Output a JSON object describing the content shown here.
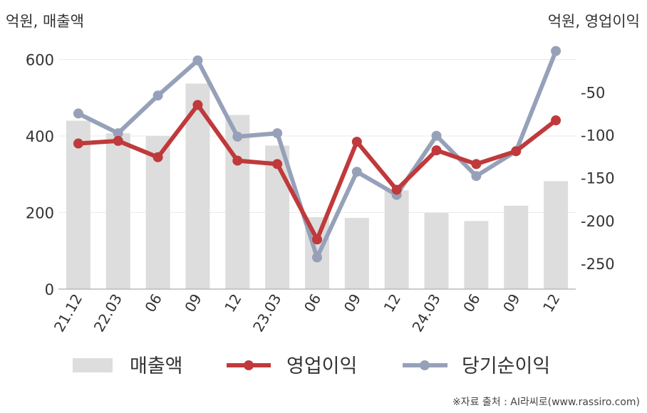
{
  "units": {
    "left": "억원, 매출액",
    "right": "억원, 영업이익"
  },
  "source": "※자료 출처 : AI라씨로(www.rassiro.com)",
  "colors": {
    "revenue": "#dddddd",
    "operating_income": "#c0393b",
    "net_income": "#96a1b9"
  },
  "chart_data": {
    "type": "bar",
    "categories": [
      "21.12",
      "22.03",
      "06",
      "09",
      "12",
      "23.03",
      "06",
      "09",
      "12",
      "24.03",
      "06",
      "09",
      "12"
    ],
    "y_left": {
      "ticks": [
        "600",
        "400",
        "200",
        "0"
      ],
      "range": [
        0,
        640
      ]
    },
    "y_right": {
      "ticks": [
        "-50",
        "-100",
        "-150",
        "-200",
        "-250"
      ],
      "range": [
        -280,
        6
      ]
    },
    "grid": true,
    "legend_position": "bottom",
    "series": [
      {
        "name": "매출액",
        "type": "bar",
        "axis": "left",
        "values": [
          440,
          407,
          400,
          537,
          455,
          375,
          188,
          186,
          258,
          199,
          178,
          218,
          282
        ]
      },
      {
        "name": "영업이익",
        "type": "line",
        "axis": "right",
        "values": [
          -110,
          -107,
          -126,
          -65,
          -130,
          -134,
          -222,
          -108,
          -164,
          -118,
          -134,
          -119,
          -83
        ]
      },
      {
        "name": "당기순이익",
        "type": "line",
        "axis": "right",
        "values": [
          -75,
          -98,
          -54,
          -13,
          -102,
          -98,
          -243,
          -143,
          -170,
          -101,
          -148,
          -119,
          -2
        ]
      }
    ]
  }
}
